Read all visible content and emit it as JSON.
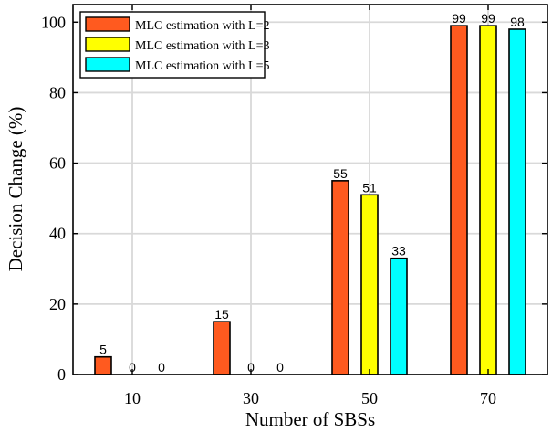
{
  "chart_data": {
    "type": "bar",
    "title": "",
    "xlabel": "Number of SBSs",
    "ylabel": "Decision Change (%)",
    "categories": [
      "10",
      "30",
      "50",
      "70"
    ],
    "ylim": [
      0,
      105
    ],
    "yticks": [
      "0",
      "20",
      "40",
      "60",
      "80",
      "100"
    ],
    "grid": true,
    "legend_position": "top-left",
    "series": [
      {
        "name": "MLC estimation with L=2",
        "color": "#ff5a1f",
        "values": [
          5,
          15,
          55,
          99
        ],
        "labels": [
          "5",
          "15",
          "55",
          "99"
        ]
      },
      {
        "name": "MLC estimation with L=3",
        "color": "#ffff00",
        "values": [
          0,
          0,
          51,
          99
        ],
        "labels": [
          "0",
          "0",
          "51",
          "99"
        ]
      },
      {
        "name": "MLC estimation with L=5",
        "color": "#00ffff",
        "values": [
          0,
          0,
          33,
          98
        ],
        "labels": [
          "0",
          "0",
          "33",
          "98"
        ]
      }
    ]
  }
}
